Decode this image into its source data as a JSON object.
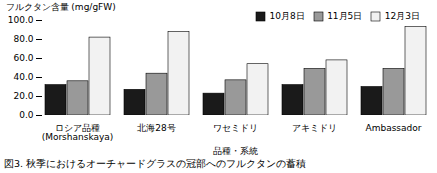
{
  "chart_data": {
    "type": "bar",
    "caption": "図3. 秋季におけるオーチャードグラスの冠部へのフルクタンの蓄積",
    "xlabel": "品種・系統",
    "ylabel": "フルクタン含量 (mg/gFW)",
    "categories": [
      "ロシア品種\n(Morshanskaya)",
      "北海28号",
      "ワセミドリ",
      "アキミドリ",
      "Ambassador"
    ],
    "series": [
      {
        "name": "10月8日",
        "color": "#1a1a1a",
        "values": [
          32,
          27,
          23,
          32,
          30
        ]
      },
      {
        "name": "11月5日",
        "color": "#999999",
        "values": [
          36,
          44,
          37,
          49,
          49
        ]
      },
      {
        "name": "12月3日",
        "color": "#f2f2f2",
        "values": [
          82,
          88,
          54,
          58,
          93
        ]
      }
    ],
    "ylim": [
      0,
      100
    ],
    "yticks": [
      {
        "value": 0,
        "label": "0.0"
      },
      {
        "value": 20,
        "label": "20.0"
      },
      {
        "value": 40,
        "label": "40.0"
      },
      {
        "value": 60,
        "label": "60.0"
      },
      {
        "value": 80,
        "label": "80.0"
      },
      {
        "value": 100,
        "label": "100.0"
      }
    ],
    "grid": false,
    "legend": "upper right"
  }
}
